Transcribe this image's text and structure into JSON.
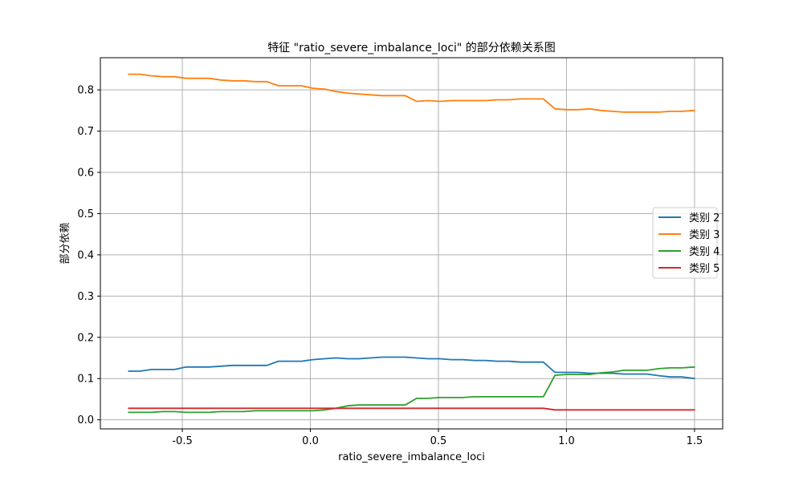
{
  "chart_data": {
    "type": "line",
    "title": "特征 \"ratio_severe_imbalance_loci\" 的部分依赖关系图",
    "xlabel": "ratio_severe_imbalance_loci",
    "ylabel": "部分依赖",
    "xlim": [
      -0.82,
      1.61
    ],
    "ylim": [
      -0.022,
      0.878
    ],
    "xticks": [
      -0.5,
      0.0,
      0.5,
      1.0,
      1.5
    ],
    "xtick_labels": [
      "-0.5",
      "0.0",
      "0.5",
      "1.0",
      "1.5"
    ],
    "yticks": [
      0.0,
      0.1,
      0.2,
      0.3,
      0.4,
      0.5,
      0.6,
      0.7,
      0.8
    ],
    "ytick_labels": [
      "0.0",
      "0.1",
      "0.2",
      "0.3",
      "0.4",
      "0.5",
      "0.6",
      "0.7",
      "0.8"
    ],
    "grid": true,
    "legend_position": "center-right",
    "x": [
      -0.71,
      -0.665,
      -0.62,
      -0.575,
      -0.53,
      -0.485,
      -0.44,
      -0.395,
      -0.35,
      -0.305,
      -0.26,
      -0.215,
      -0.17,
      -0.125,
      -0.08,
      -0.035,
      0.01,
      0.055,
      0.1,
      0.145,
      0.19,
      0.235,
      0.28,
      0.325,
      0.37,
      0.415,
      0.46,
      0.505,
      0.55,
      0.595,
      0.64,
      0.685,
      0.73,
      0.775,
      0.82,
      0.865,
      0.91,
      0.955,
      1.0,
      1.045,
      1.09,
      1.135,
      1.18,
      1.225,
      1.27,
      1.315,
      1.36,
      1.405,
      1.45,
      1.5
    ],
    "series": [
      {
        "name": "类别 2",
        "color": "#1f77b4",
        "values": [
          0.118,
          0.118,
          0.122,
          0.122,
          0.122,
          0.128,
          0.128,
          0.128,
          0.13,
          0.132,
          0.132,
          0.132,
          0.132,
          0.142,
          0.142,
          0.142,
          0.146,
          0.148,
          0.15,
          0.148,
          0.148,
          0.15,
          0.152,
          0.152,
          0.152,
          0.15,
          0.148,
          0.148,
          0.146,
          0.146,
          0.144,
          0.144,
          0.142,
          0.142,
          0.14,
          0.14,
          0.14,
          0.115,
          0.115,
          0.115,
          0.113,
          0.113,
          0.113,
          0.111,
          0.111,
          0.111,
          0.107,
          0.104,
          0.104,
          0.1
        ]
      },
      {
        "name": "类别 3",
        "color": "#ff7f0e",
        "values": [
          0.838,
          0.838,
          0.834,
          0.832,
          0.832,
          0.828,
          0.828,
          0.828,
          0.824,
          0.822,
          0.822,
          0.82,
          0.82,
          0.81,
          0.81,
          0.81,
          0.804,
          0.802,
          0.796,
          0.792,
          0.79,
          0.788,
          0.786,
          0.786,
          0.786,
          0.772,
          0.774,
          0.772,
          0.774,
          0.774,
          0.774,
          0.774,
          0.776,
          0.776,
          0.778,
          0.778,
          0.778,
          0.754,
          0.752,
          0.752,
          0.754,
          0.75,
          0.748,
          0.746,
          0.746,
          0.746,
          0.746,
          0.748,
          0.748,
          0.75
        ]
      },
      {
        "name": "类别 4",
        "color": "#2ca02c",
        "values": [
          0.018,
          0.018,
          0.018,
          0.02,
          0.02,
          0.018,
          0.018,
          0.018,
          0.02,
          0.02,
          0.02,
          0.022,
          0.022,
          0.022,
          0.022,
          0.022,
          0.022,
          0.024,
          0.028,
          0.034,
          0.036,
          0.036,
          0.036,
          0.036,
          0.036,
          0.052,
          0.052,
          0.054,
          0.054,
          0.054,
          0.056,
          0.056,
          0.056,
          0.056,
          0.056,
          0.056,
          0.056,
          0.108,
          0.11,
          0.11,
          0.11,
          0.114,
          0.116,
          0.12,
          0.12,
          0.12,
          0.124,
          0.126,
          0.126,
          0.128
        ]
      },
      {
        "name": "类别 5",
        "color": "#d62728",
        "values": [
          0.028,
          0.028,
          0.028,
          0.028,
          0.028,
          0.028,
          0.028,
          0.028,
          0.028,
          0.028,
          0.028,
          0.028,
          0.028,
          0.028,
          0.028,
          0.028,
          0.028,
          0.028,
          0.028,
          0.028,
          0.028,
          0.028,
          0.028,
          0.028,
          0.028,
          0.028,
          0.028,
          0.028,
          0.028,
          0.028,
          0.028,
          0.028,
          0.028,
          0.028,
          0.028,
          0.028,
          0.028,
          0.024,
          0.024,
          0.024,
          0.024,
          0.024,
          0.024,
          0.024,
          0.024,
          0.024,
          0.024,
          0.024,
          0.024,
          0.024
        ]
      }
    ]
  }
}
